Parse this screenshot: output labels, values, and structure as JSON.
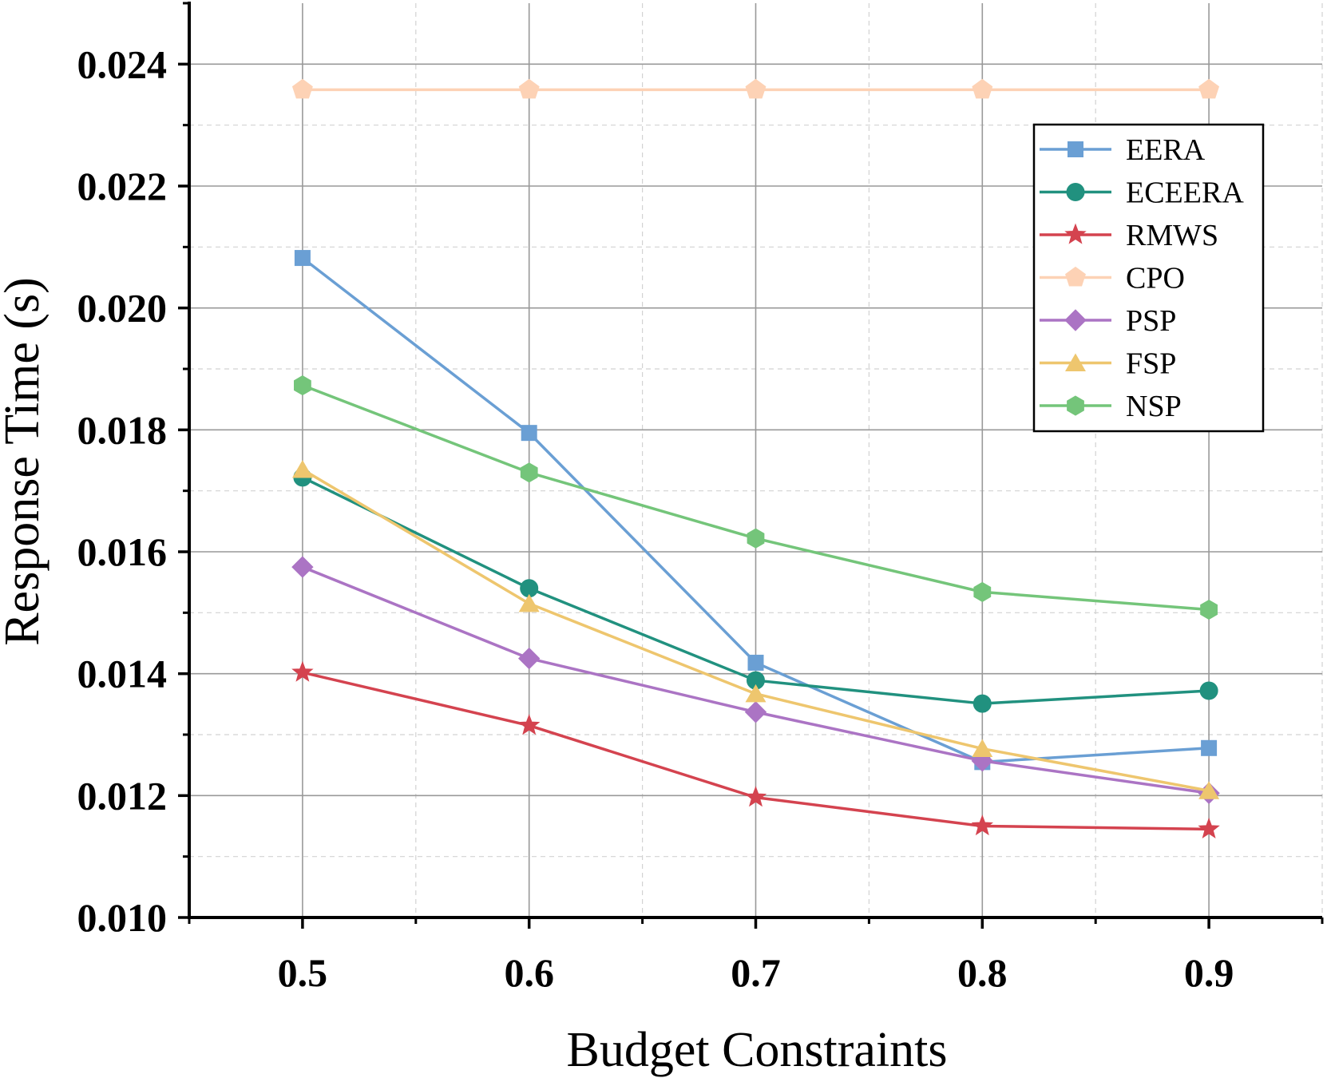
{
  "chart_data": {
    "type": "line",
    "title": "",
    "xlabel": "Budget Constraints",
    "ylabel": "Response Time (s)",
    "x": [
      0.5,
      0.6,
      0.7,
      0.8,
      0.9
    ],
    "x_tick_labels": [
      "0.5",
      "0.6",
      "0.7",
      "0.8",
      "0.9"
    ],
    "xlim": [
      0.45,
      0.95
    ],
    "ylim": [
      0.01,
      0.025
    ],
    "y_ticks": [
      0.01,
      0.012,
      0.014,
      0.016,
      0.018,
      0.02,
      0.022,
      0.024
    ],
    "y_tick_labels": [
      "0.010",
      "0.012",
      "0.014",
      "0.016",
      "0.018",
      "0.020",
      "0.022",
      "0.024"
    ],
    "grid": true,
    "legend_position": "top-right",
    "series": [
      {
        "name": "EERA",
        "marker": "square",
        "color": "#6a9fd4",
        "values": [
          0.02082,
          0.01795,
          0.01418,
          0.01255,
          0.01278
        ]
      },
      {
        "name": "ECEERA",
        "marker": "circle",
        "color": "#21917f",
        "values": [
          0.01722,
          0.0154,
          0.01389,
          0.01351,
          0.01372
        ]
      },
      {
        "name": "RMWS",
        "marker": "star",
        "color": "#d4434f",
        "values": [
          0.01402,
          0.01315,
          0.01197,
          0.0115,
          0.01145
        ]
      },
      {
        "name": "CPO",
        "marker": "pentagon",
        "color": "#fdd2b5",
        "values": [
          0.02358,
          0.02358,
          0.02358,
          0.02358,
          0.02358
        ]
      },
      {
        "name": "PSP",
        "marker": "diamond",
        "color": "#ab74c4",
        "values": [
          0.01575,
          0.01425,
          0.01337,
          0.01257,
          0.01204
        ]
      },
      {
        "name": "FSP",
        "marker": "triangle",
        "color": "#eec66e",
        "values": [
          0.01735,
          0.01515,
          0.01367,
          0.01277,
          0.01208
        ]
      },
      {
        "name": "NSP",
        "marker": "hexagon",
        "color": "#74c57a",
        "values": [
          0.01873,
          0.0173,
          0.01622,
          0.01534,
          0.01505
        ]
      }
    ]
  }
}
